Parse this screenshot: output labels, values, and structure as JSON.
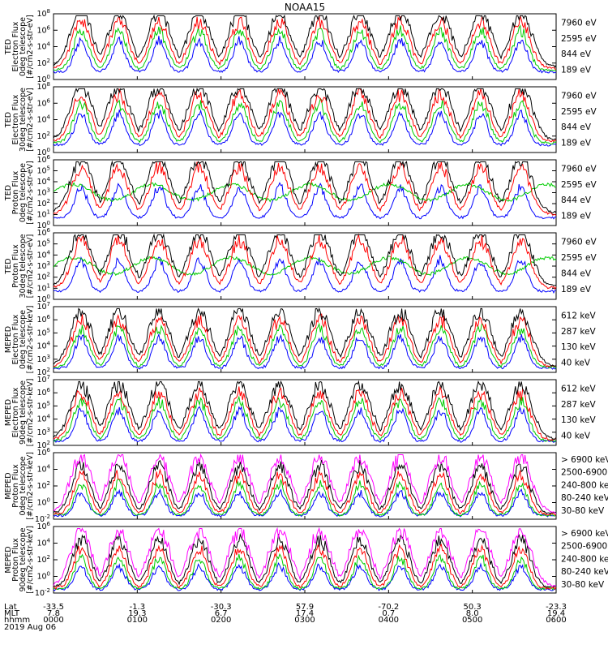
{
  "chart_data": {
    "type": "line",
    "title": "NOAA15",
    "x_axis": {
      "row_labels": [
        "Lat",
        "MLT",
        "hhmm",
        "2019 Aug 06"
      ],
      "columns": [
        {
          "lat": "-33.5",
          "mlt": "7.8",
          "hhmm": "0000"
        },
        {
          "lat": "-1.3",
          "mlt": "19.3",
          "hhmm": "0100"
        },
        {
          "lat": "-30.3",
          "mlt": "6.7",
          "hhmm": "0200"
        },
        {
          "lat": "57.9",
          "mlt": "17.4",
          "hhmm": "0300"
        },
        {
          "lat": "-70.2",
          "mlt": "0.7",
          "hhmm": "0400"
        },
        {
          "lat": "50.3",
          "mlt": "8.0",
          "hhmm": "0500"
        },
        {
          "lat": "-23.3",
          "mlt": "19.4",
          "hhmm": "0600"
        }
      ]
    },
    "panels": [
      {
        "ylabel_lines": [
          "TED",
          "Electron Flux",
          "0deg telescope",
          "[#/cm2-s-str-eV]"
        ],
        "ylim_exp": [
          0,
          8
        ],
        "tick_exps": [
          0,
          2,
          4,
          6,
          8
        ],
        "series": [
          {
            "name": "7960 eV",
            "color": "#000000"
          },
          {
            "name": "2595 eV",
            "color": "#ff0000"
          },
          {
            "name": "844 eV",
            "color": "#00cc00"
          },
          {
            "name": "189 eV",
            "color": "#0000ff"
          }
        ]
      },
      {
        "ylabel_lines": [
          "TED",
          "Electron Flux",
          "30deg telescope",
          "[#/cm2-s-str-eV]"
        ],
        "ylim_exp": [
          0,
          8
        ],
        "tick_exps": [
          0,
          2,
          4,
          6,
          8
        ],
        "series": [
          {
            "name": "7960 eV",
            "color": "#000000"
          },
          {
            "name": "2595 eV",
            "color": "#ff0000"
          },
          {
            "name": "844 eV",
            "color": "#00cc00"
          },
          {
            "name": "189 eV",
            "color": "#0000ff"
          }
        ]
      },
      {
        "ylabel_lines": [
          "TED",
          "Proton Flux",
          "0deg telescope",
          "[#/cm2-s-str-eV]"
        ],
        "ylim_exp": [
          0,
          6
        ],
        "tick_exps": [
          0,
          1,
          2,
          3,
          4,
          5,
          6
        ],
        "series": [
          {
            "name": "7960 eV",
            "color": "#000000"
          },
          {
            "name": "2595 eV",
            "color": "#ff0000"
          },
          {
            "name": "844 eV",
            "color": "#00cc00"
          },
          {
            "name": "189 eV",
            "color": "#0000ff"
          }
        ]
      },
      {
        "ylabel_lines": [
          "TED",
          "Proton Flux",
          "30deg telescope",
          "[#/cm2-s-str-eV]"
        ],
        "ylim_exp": [
          0,
          6
        ],
        "tick_exps": [
          0,
          1,
          2,
          3,
          4,
          5,
          6
        ],
        "series": [
          {
            "name": "7960 eV",
            "color": "#000000"
          },
          {
            "name": "2595 eV",
            "color": "#ff0000"
          },
          {
            "name": "844 eV",
            "color": "#00cc00"
          },
          {
            "name": "189 eV",
            "color": "#0000ff"
          }
        ]
      },
      {
        "ylabel_lines": [
          "MEPED",
          "Electron Flux",
          "0deg telescope",
          "[#/cm2-s-str-keV]"
        ],
        "ylim_exp": [
          2,
          7
        ],
        "tick_exps": [
          2,
          3,
          4,
          5,
          6,
          7
        ],
        "series": [
          {
            "name": "612 keV",
            "color": "#000000"
          },
          {
            "name": "287 keV",
            "color": "#ff0000"
          },
          {
            "name": "130 keV",
            "color": "#00cc00"
          },
          {
            "name": "40 keV",
            "color": "#0000ff"
          }
        ]
      },
      {
        "ylabel_lines": [
          "MEPED",
          "Electron Flux",
          "90deg telescope",
          "[#/cm2-s-str-keV]"
        ],
        "ylim_exp": [
          2,
          7
        ],
        "tick_exps": [
          2,
          3,
          4,
          5,
          6,
          7
        ],
        "series": [
          {
            "name": "612 keV",
            "color": "#000000"
          },
          {
            "name": "287 keV",
            "color": "#ff0000"
          },
          {
            "name": "130 keV",
            "color": "#00cc00"
          },
          {
            "name": "40 keV",
            "color": "#0000ff"
          }
        ]
      },
      {
        "ylabel_lines": [
          "MEPED",
          "Proton Flux",
          "0deg telescope",
          "[#/cm2-s-str-keV]"
        ],
        "ylim_exp": [
          -2,
          6
        ],
        "tick_exps": [
          -2,
          0,
          2,
          4,
          6
        ],
        "series": [
          {
            "name": "> 6900 keV",
            "color": "#ff00ff"
          },
          {
            "name": "2500-6900",
            "color": "#000000"
          },
          {
            "name": "240-800 keV",
            "color": "#ff0000"
          },
          {
            "name": "80-240 keV",
            "color": "#00cc00"
          },
          {
            "name": "30-80 keV",
            "color": "#0000ff"
          }
        ]
      },
      {
        "ylabel_lines": [
          "MEPED",
          "Proton Flux",
          "90deg telescope",
          "[#/cm2-s-str-keV]"
        ],
        "ylim_exp": [
          -2,
          6
        ],
        "tick_exps": [
          -2,
          0,
          2,
          4,
          6
        ],
        "series": [
          {
            "name": "> 6900 keV",
            "color": "#ff00ff"
          },
          {
            "name": "2500-6900",
            "color": "#000000"
          },
          {
            "name": "240-800 keV",
            "color": "#ff0000"
          },
          {
            "name": "80-240 keV",
            "color": "#00cc00"
          },
          {
            "name": "30-80 keV",
            "color": "#0000ff"
          }
        ]
      }
    ]
  }
}
